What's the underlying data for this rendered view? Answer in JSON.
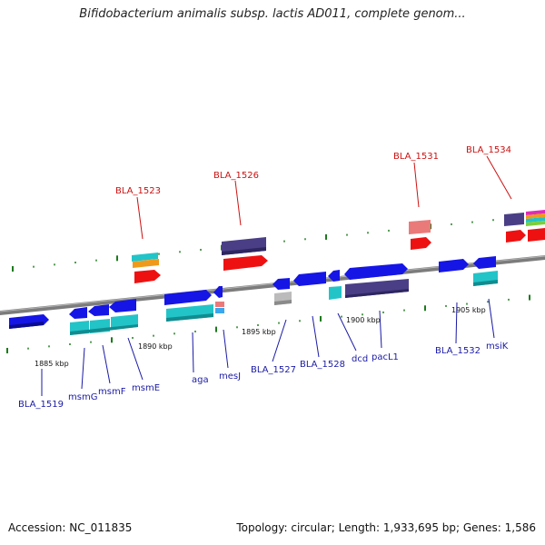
{
  "title": "Bifidobacterium animalis subsp. lactis AD011, complete genom...",
  "footer": {
    "accession": "Accession: NC_011835",
    "summary": "Topology: circular; Length: 1,933,695 bp; Genes: 1,586"
  },
  "colors": {
    "blue": "#1515e6",
    "cyan": "#22c4c8",
    "navy": "#4a3f86",
    "red": "#ee1111",
    "pink": "#ea7a7a",
    "gray": "#bbbbbb",
    "orange": "#ef9a1a",
    "label_blue": "#1a1aa6",
    "label_red": "#cc1111",
    "tick_green": "#1d7a1d"
  },
  "scale_labels": [
    "1885 kbp",
    "1890 kbp",
    "1895 kbp",
    "1900 kbp",
    "1905 kbp"
  ],
  "gene_labels_bottom": [
    "BLA_1519",
    "msmG",
    "msmF",
    "msmE",
    "aga",
    "mesJ",
    "BLA_1527",
    "BLA_1528",
    "dcd",
    "pacL1",
    "BLA_1532",
    "msiK"
  ],
  "gene_labels_top": [
    "BLA_1523",
    "BLA_1526",
    "BLA_1531",
    "BLA_1534"
  ]
}
